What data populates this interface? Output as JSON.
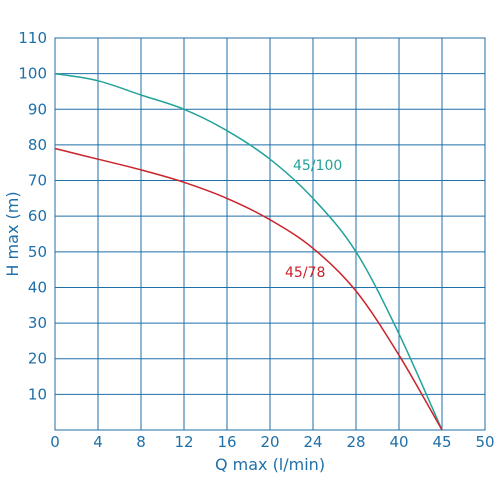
{
  "chart_data": {
    "type": "line",
    "title": "",
    "xlabel": "Q max (l/min)",
    "ylabel": "H max (m)",
    "x_tick_labels": [
      "0",
      "4",
      "8",
      "12",
      "16",
      "20",
      "24",
      "28",
      "40",
      "45",
      "50"
    ],
    "x_tick_values": [
      0,
      4,
      8,
      12,
      16,
      20,
      24,
      28,
      40,
      45,
      50
    ],
    "y_ticks": [
      10,
      20,
      30,
      40,
      50,
      60,
      70,
      80,
      90,
      100,
      110
    ],
    "ylim": [
      0,
      110
    ],
    "grid": true,
    "series": [
      {
        "name": "45/100",
        "color": "#22a39a",
        "points": [
          [
            0,
            100
          ],
          [
            4,
            98
          ],
          [
            8,
            94
          ],
          [
            12,
            90
          ],
          [
            16,
            84
          ],
          [
            20,
            76
          ],
          [
            24,
            65
          ],
          [
            28,
            50
          ],
          [
            40,
            27
          ],
          [
            45,
            0
          ]
        ]
      },
      {
        "name": "45/78",
        "color": "#cc2229",
        "points": [
          [
            0,
            79
          ],
          [
            4,
            76
          ],
          [
            8,
            73
          ],
          [
            12,
            69.5
          ],
          [
            16,
            65
          ],
          [
            20,
            59
          ],
          [
            24,
            51
          ],
          [
            28,
            39
          ],
          [
            40,
            21
          ],
          [
            45,
            0
          ]
        ]
      }
    ]
  }
}
